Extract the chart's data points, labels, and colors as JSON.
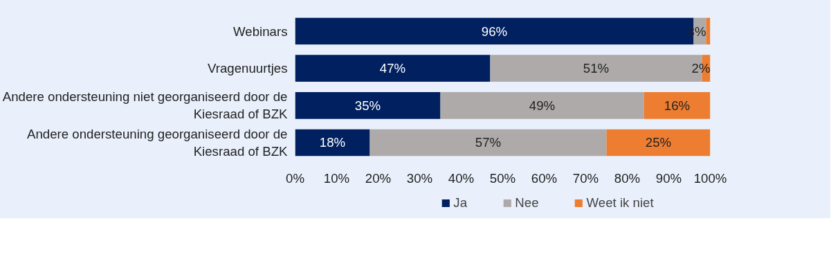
{
  "chart_data": {
    "type": "bar",
    "orientation": "horizontal",
    "stacked": true,
    "categories": [
      "Webinars",
      "Vragenuurtjes",
      "Andere ondersteuning niet georganiseerd door de Kiesraad of BZK",
      "Andere ondersteuning georganiseerd door de Kiesraad of BZK"
    ],
    "series": [
      {
        "name": "Ja",
        "color": "#002060",
        "values": [
          96,
          47,
          35,
          18
        ],
        "value_labels": [
          "96%",
          "47%",
          "35%",
          "18%"
        ]
      },
      {
        "name": "Nee",
        "color": "#aeaaaa",
        "values": [
          3,
          51,
          49,
          57
        ],
        "value_labels": [
          "3%",
          "51%",
          "49%",
          "57%"
        ]
      },
      {
        "name": "Weet ik niet",
        "color": "#ed7d31",
        "values": [
          1,
          2,
          16,
          25
        ],
        "value_labels": [
          null,
          "2%",
          "16%",
          "25%"
        ]
      }
    ],
    "xlim": [
      0,
      100
    ],
    "xticks": [
      {
        "value": 0,
        "label": "0%"
      },
      {
        "value": 10,
        "label": "10%"
      },
      {
        "value": 20,
        "label": "20%"
      },
      {
        "value": 30,
        "label": "30%"
      },
      {
        "value": 40,
        "label": "40%"
      },
      {
        "value": 50,
        "label": "50%"
      },
      {
        "value": 60,
        "label": "60%"
      },
      {
        "value": 70,
        "label": "70%"
      },
      {
        "value": 80,
        "label": "80%"
      },
      {
        "value": 90,
        "label": "90%"
      },
      {
        "value": 100,
        "label": "100%"
      }
    ],
    "grid": false,
    "legend": "bottom"
  }
}
